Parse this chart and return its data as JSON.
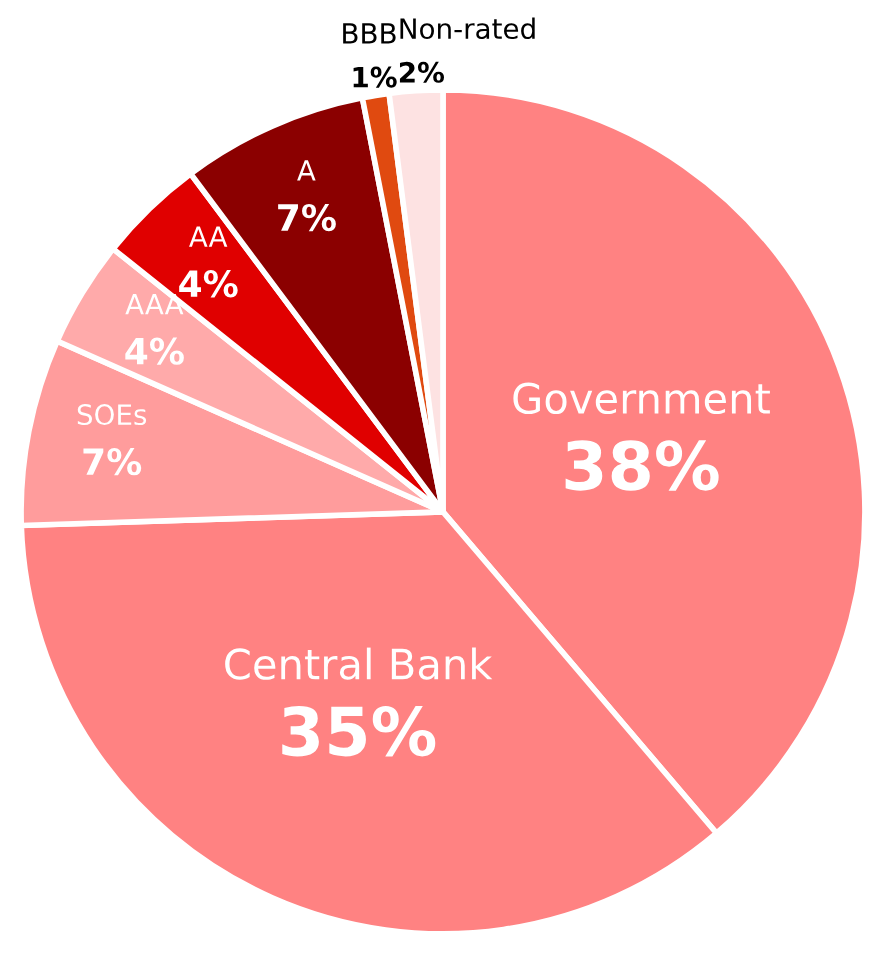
{
  "chart_data": {
    "type": "pie",
    "categories": [
      "Government",
      "Central Bank",
      "SOEs",
      "AAA",
      "AA",
      "A",
      "BBB",
      "Non-rated"
    ],
    "values": [
      38,
      35,
      7,
      4,
      4,
      7,
      1,
      2
    ],
    "value_labels": [
      "38%",
      "35%",
      "7%",
      "4%",
      "4%",
      "7%",
      "1%",
      "2%"
    ],
    "colors": [
      "#ff8282",
      "#ff8282",
      "#ff9c9c",
      "#ffaaaa",
      "#e00000",
      "#8b0000",
      "#e04a10",
      "#fde2e2"
    ]
  }
}
